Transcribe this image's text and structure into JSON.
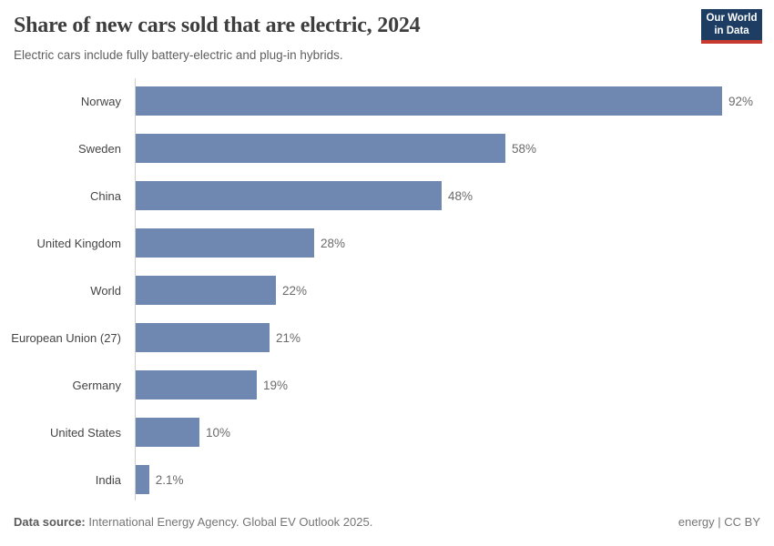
{
  "header": {
    "title": "Share of new cars sold that are electric, 2024",
    "subtitle": "Electric cars include fully battery-electric and plug-in hybrids."
  },
  "logo": {
    "line1": "Our World",
    "line2": "in Data",
    "bg_color": "#1d3d63",
    "accent_color": "#c8392f"
  },
  "chart_data": {
    "type": "bar",
    "orientation": "horizontal",
    "title": "Share of new cars sold that are electric, 2024",
    "subtitle": "Electric cars include fully battery-electric and plug-in hybrids.",
    "categories": [
      "Norway",
      "Sweden",
      "China",
      "United Kingdom",
      "World",
      "European Union (27)",
      "Germany",
      "United States",
      "India"
    ],
    "values": [
      92,
      58,
      48,
      28,
      22,
      21,
      19,
      10,
      2.1
    ],
    "value_labels": [
      "92%",
      "58%",
      "48%",
      "28%",
      "22%",
      "21%",
      "19%",
      "10%",
      "2.1%"
    ],
    "xlabel": "",
    "ylabel": "",
    "xlim": [
      0,
      100
    ],
    "grid": false,
    "legend": false,
    "bar_color": "#6f88b2",
    "axis_line_color": "#cfcfcf"
  },
  "footer": {
    "source_label": "Data source:",
    "source_text": " International Energy Agency. Global EV Outlook 2025.",
    "license_text": "energy | CC BY"
  }
}
